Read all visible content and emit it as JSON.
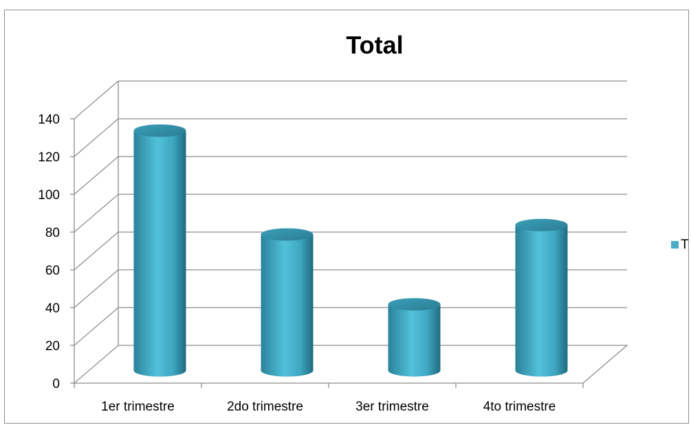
{
  "chart_data": {
    "type": "bar",
    "title": "Total",
    "categories": [
      "1er trimestre",
      "2do trimestre",
      "3er trimestre",
      "4to trimestre"
    ],
    "series": [
      {
        "name": "Total",
        "values": [
          127,
          72,
          35,
          77
        ],
        "color": "#4BACC6"
      }
    ],
    "ylim": [
      0,
      140
    ],
    "yticks": [
      0,
      20,
      40,
      60,
      80,
      100,
      120,
      140
    ],
    "grid": true,
    "legend": "right",
    "legend_label": "T",
    "style": "3d-cylinder"
  }
}
